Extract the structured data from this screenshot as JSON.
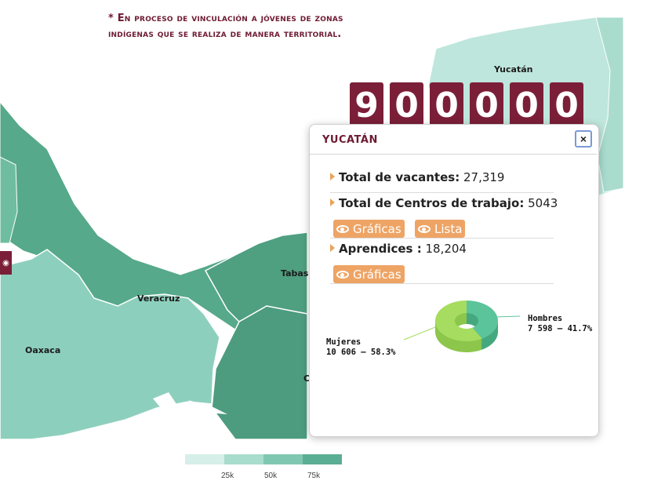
{
  "note": {
    "line1": "* En proceso de vinculación a jóvenes de zonas",
    "line2": "indígenas que se realiza de manera territorial."
  },
  "map": {
    "labels": {
      "yucatan": "Yucatán",
      "veracruz": "Veracruz",
      "oaxaca": "Oaxaca",
      "tabasco": "Tabas",
      "chiapas": "C"
    },
    "legend_ticks": [
      "25k",
      "50k",
      "75k"
    ],
    "legend_colors": [
      "#d6efe8",
      "#a8dccd",
      "#7fc7b1",
      "#5aae93"
    ]
  },
  "counter": {
    "digits": [
      "9",
      "0",
      "0",
      "0",
      "0",
      "0"
    ]
  },
  "popup": {
    "title": "YUCATÁN",
    "close_icon": "×",
    "vacantes_label": "Total de vacantes:",
    "vacantes_value": "27,319",
    "centros_label": "Total de Centros de trabajo:",
    "centros_value": "5043",
    "graficas_label": "Gráficas",
    "lista_label": "Lista",
    "aprendices_label": "Aprendices :",
    "aprendices_value": "18,204",
    "graficas2_label": "Gráficas"
  },
  "chart_data": {
    "type": "pie",
    "categories": [
      "Hombres",
      "Mujeres"
    ],
    "values": [
      7598,
      10606
    ],
    "percent": [
      41.7,
      58.3
    ],
    "labels": {
      "hombres_name": "Hombres",
      "hombres_value": "7 598 – 41.7%",
      "mujeres_name": "Mujeres",
      "mujeres_value": "10 606 – 58.3%"
    },
    "colors": {
      "hombres": "#5cc49a",
      "mujeres": "#a6dc5f"
    }
  }
}
